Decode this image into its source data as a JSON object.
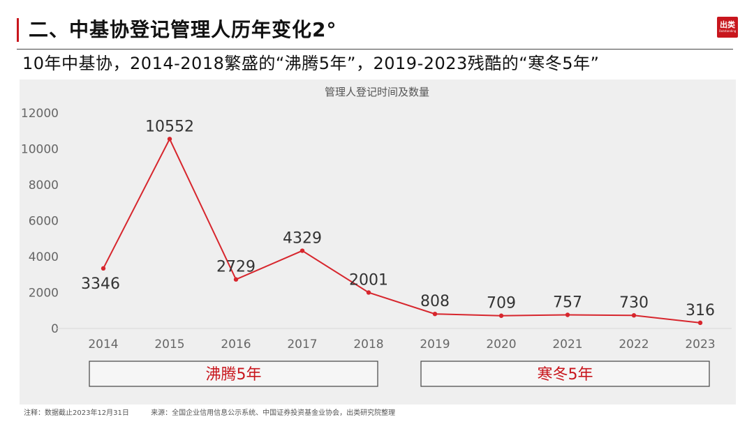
{
  "header": {
    "title": "二、中基协登记管理人历年变化2°",
    "logo_text": "出类",
    "logo_subtext": "Outstanding"
  },
  "subtitle": "10年中基协，2014-2018繁盛的“沸腾5年”，2019-2023残酷的“寒冬5年”",
  "footer": {
    "note": "注释：数据截止2023年12月31日",
    "source": "来源：全国企业信用信息公示系统、中国证券投资基金业协会，出类研究院整理"
  },
  "colors": {
    "accent": "#c8161d",
    "line": "#d7262d",
    "panel_bg": "#efefef"
  },
  "chart_data": {
    "type": "line",
    "title": "管理人登记时间及数量",
    "categories": [
      "2014",
      "2015",
      "2016",
      "2017",
      "2018",
      "2019",
      "2020",
      "2021",
      "2022",
      "2023"
    ],
    "series": [
      {
        "values": [
          3346,
          10552,
          2729,
          4329,
          2001,
          808,
          709,
          757,
          730,
          316
        ]
      }
    ],
    "yticks": [
      0,
      2000,
      4000,
      6000,
      8000,
      10000,
      12000
    ],
    "ylim": [
      0,
      12000
    ],
    "xlabel": "",
    "ylabel": "",
    "grid": false,
    "legend": "none",
    "groups": [
      {
        "label": "沸腾5年",
        "from": "2014",
        "to": "2018"
      },
      {
        "label": "寒冬5年",
        "from": "2019",
        "to": "2023"
      }
    ]
  }
}
